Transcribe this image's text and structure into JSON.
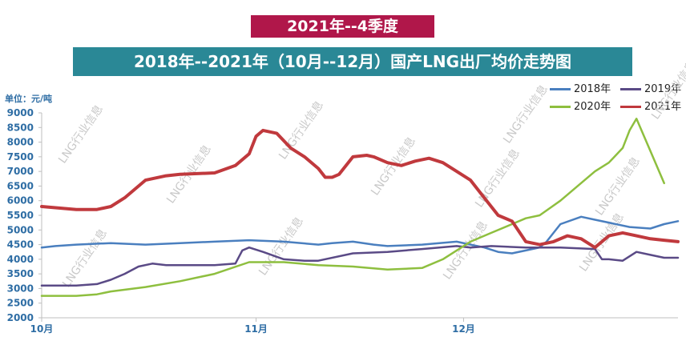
{
  "banner_top": "2021年--4季度",
  "banner_title": "2018年--2021年（10月--12月）国产LNG出厂均价走势图",
  "unit_label": "单位：元/吨",
  "watermark": "LNG行业信息",
  "chart_data": {
    "type": "line",
    "title": "2018年--2021年（10月--12月）国产LNG出厂均价走势图",
    "ylabel": "单位：元/吨",
    "ylim": [
      2000,
      9000
    ],
    "yticks": [
      2000,
      2500,
      3000,
      3500,
      4000,
      4500,
      5000,
      5500,
      6000,
      6500,
      7000,
      7500,
      8000,
      8500,
      9000
    ],
    "xlim": [
      0,
      92
    ],
    "xticks": [
      {
        "label": "10月",
        "x": 0
      },
      {
        "label": "11月",
        "x": 31
      },
      {
        "label": "12月",
        "x": 61
      }
    ],
    "grid": false,
    "legend_position": "top-right",
    "series": [
      {
        "name": "2018年",
        "color": "#4a7fbf",
        "width": 2.5,
        "x": [
          0,
          2,
          5,
          10,
          15,
          20,
          25,
          30,
          35,
          40,
          42,
          45,
          48,
          50,
          55,
          60,
          62,
          64,
          66,
          68,
          70,
          72,
          73,
          75,
          78,
          80,
          85,
          88,
          90,
          92
        ],
        "y": [
          4400,
          4450,
          4500,
          4550,
          4500,
          4550,
          4600,
          4650,
          4600,
          4500,
          4550,
          4600,
          4500,
          4450,
          4500,
          4600,
          4500,
          4400,
          4250,
          4200,
          4300,
          4400,
          4600,
          5200,
          5450,
          5350,
          5100,
          5050,
          5200,
          5300
        ]
      },
      {
        "name": "2019年",
        "color": "#5a4a86",
        "width": 2.5,
        "x": [
          0,
          5,
          8,
          10,
          12,
          14,
          16,
          18,
          20,
          22,
          25,
          28,
          29,
          30,
          32,
          35,
          38,
          40,
          45,
          50,
          55,
          60,
          62,
          65,
          70,
          75,
          80,
          81,
          82,
          84,
          86,
          88,
          90,
          92
        ],
        "y": [
          3100,
          3100,
          3150,
          3300,
          3500,
          3750,
          3850,
          3800,
          3800,
          3800,
          3800,
          3850,
          4300,
          4400,
          4250,
          4000,
          3950,
          3950,
          4200,
          4250,
          4350,
          4450,
          4400,
          4450,
          4400,
          4400,
          4350,
          4000,
          4000,
          3950,
          4250,
          4150,
          4050,
          4050
        ]
      },
      {
        "name": "2020年",
        "color": "#8ebf3f",
        "width": 2.5,
        "x": [
          0,
          5,
          8,
          10,
          15,
          20,
          25,
          30,
          35,
          40,
          45,
          50,
          55,
          58,
          60,
          62,
          65,
          68,
          70,
          72,
          75,
          77,
          80,
          82,
          84,
          85,
          86,
          88,
          90
        ],
        "y": [
          2750,
          2750,
          2800,
          2900,
          3050,
          3250,
          3500,
          3900,
          3900,
          3800,
          3750,
          3650,
          3700,
          4000,
          4300,
          4600,
          4900,
          5200,
          5400,
          5500,
          6000,
          6400,
          7000,
          7300,
          7800,
          8400,
          8800,
          7700,
          6600
        ]
      },
      {
        "name": "2021年",
        "color": "#c0393d",
        "width": 4,
        "x": [
          0,
          5,
          8,
          10,
          12,
          15,
          18,
          20,
          25,
          28,
          30,
          31,
          32,
          34,
          36,
          38,
          40,
          41,
          42,
          43,
          45,
          47,
          48,
          50,
          52,
          54,
          56,
          58,
          60,
          62,
          64,
          66,
          68,
          70,
          72,
          74,
          76,
          78,
          80,
          82,
          84,
          86,
          88,
          90,
          92
        ],
        "y": [
          5800,
          5700,
          5700,
          5800,
          6100,
          6700,
          6850,
          6900,
          6950,
          7200,
          7600,
          8200,
          8400,
          8300,
          7800,
          7500,
          7100,
          6800,
          6800,
          6900,
          7500,
          7550,
          7500,
          7300,
          7200,
          7350,
          7450,
          7300,
          7000,
          6700,
          6100,
          5500,
          5300,
          4600,
          4500,
          4600,
          4800,
          4700,
          4400,
          4800,
          4900,
          4800,
          4700,
          4650,
          4600
        ]
      }
    ]
  }
}
